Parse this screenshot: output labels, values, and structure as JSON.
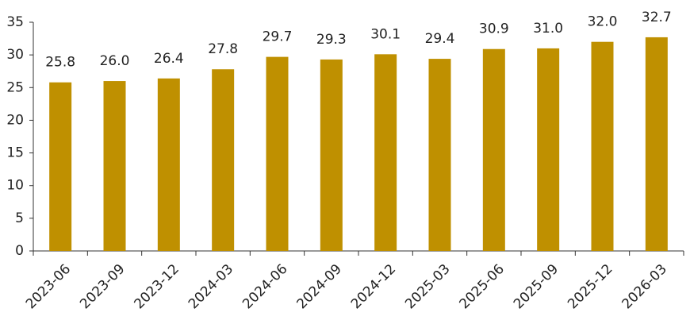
{
  "chart_data": {
    "type": "bar",
    "categories": [
      "2023-06",
      "2023-09",
      "2023-12",
      "2024-03",
      "2024-06",
      "2024-09",
      "2024-12",
      "2025-03",
      "2025-06",
      "2025-09",
      "2025-12",
      "2026-03"
    ],
    "values": [
      25.8,
      26.0,
      26.4,
      27.8,
      29.7,
      29.3,
      30.1,
      29.4,
      30.9,
      31.0,
      32.0,
      32.7
    ],
    "value_labels": [
      "25.8",
      "26.0",
      "26.4",
      "27.8",
      "29.7",
      "29.3",
      "30.1",
      "29.4",
      "30.9",
      "31.0",
      "32.0",
      "32.7"
    ],
    "color": "#bf9000",
    "ylim": [
      0,
      35
    ],
    "yticks": [
      0,
      5,
      10,
      15,
      20,
      25,
      30,
      35
    ],
    "grid": false
  }
}
